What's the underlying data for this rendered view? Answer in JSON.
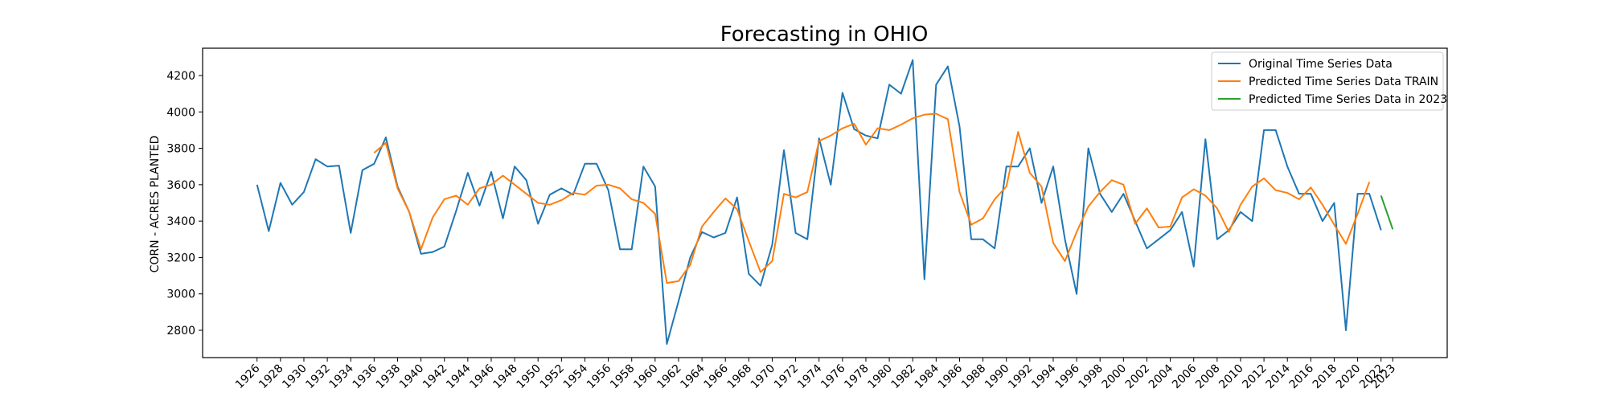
{
  "chart_data": {
    "type": "line",
    "title": "Forecasting in OHIO",
    "xlabel": "",
    "ylabel": "CORN - ACRES PLANTED",
    "xlim": [
      1921.35,
      2027.65
    ],
    "ylim": [
      2650,
      4350
    ],
    "yticks": [
      2800,
      3000,
      3200,
      3400,
      3600,
      3800,
      4000,
      4200
    ],
    "xticks": [
      1926,
      1928,
      1930,
      1932,
      1934,
      1936,
      1938,
      1940,
      1942,
      1944,
      1946,
      1948,
      1950,
      1952,
      1954,
      1956,
      1958,
      1960,
      1962,
      1964,
      1966,
      1968,
      1970,
      1972,
      1974,
      1976,
      1978,
      1980,
      1982,
      1984,
      1986,
      1988,
      1990,
      1992,
      1994,
      1996,
      1998,
      2000,
      2002,
      2004,
      2006,
      2008,
      2010,
      2012,
      2014,
      2016,
      2018,
      2020,
      2022,
      2023
    ],
    "grid": false,
    "legend_position": "upper right",
    "series": [
      {
        "name": "Original Time Series Data",
        "color": "#1f77b4",
        "x": [
          1926,
          1927,
          1928,
          1929,
          1930,
          1931,
          1932,
          1933,
          1934,
          1935,
          1936,
          1937,
          1938,
          1939,
          1940,
          1941,
          1942,
          1943,
          1944,
          1945,
          1946,
          1947,
          1948,
          1949,
          1950,
          1951,
          1952,
          1953,
          1954,
          1955,
          1956,
          1957,
          1958,
          1959,
          1960,
          1961,
          1962,
          1963,
          1964,
          1965,
          1966,
          1967,
          1968,
          1969,
          1970,
          1971,
          1972,
          1973,
          1974,
          1975,
          1976,
          1977,
          1978,
          1979,
          1980,
          1981,
          1982,
          1983,
          1984,
          1985,
          1986,
          1987,
          1988,
          1989,
          1990,
          1991,
          1992,
          1993,
          1994,
          1995,
          1996,
          1997,
          1998,
          1999,
          2000,
          2001,
          2002,
          2003,
          2004,
          2005,
          2006,
          2007,
          2008,
          2009,
          2010,
          2011,
          2012,
          2013,
          2014,
          2015,
          2016,
          2017,
          2018,
          2019,
          2020,
          2021,
          2022
        ],
        "values": [
          3600,
          3345,
          3610,
          3490,
          3560,
          3740,
          3700,
          3705,
          3335,
          3680,
          3715,
          3860,
          3590,
          3450,
          3220,
          3230,
          3260,
          3455,
          3665,
          3485,
          3670,
          3415,
          3700,
          3625,
          3385,
          3545,
          3580,
          3545,
          3715,
          3715,
          3570,
          3245,
          3245,
          3700,
          3590,
          2725,
          2960,
          3200,
          3340,
          3310,
          3335,
          3530,
          3110,
          3045,
          3270,
          3790,
          3335,
          3300,
          3855,
          3600,
          4105,
          3905,
          3870,
          3855,
          4150,
          4100,
          4285,
          3080,
          4150,
          4250,
          3920,
          3300,
          3300,
          3250,
          3700,
          3700,
          3800,
          3500,
          3700,
          3300,
          3000,
          3800,
          3550,
          3450,
          3550,
          3400,
          3250,
          3300,
          3350,
          3450,
          3150,
          3850,
          3300,
          3350,
          3450,
          3400,
          3900,
          3900,
          3700,
          3550,
          3550,
          3400,
          3500,
          2800,
          3550,
          3550,
          3350
        ]
      },
      {
        "name": "Predicted Time Series Data TRAIN",
        "color": "#ff7f0e",
        "x": [
          1936,
          1937,
          1938,
          1939,
          1940,
          1941,
          1942,
          1943,
          1944,
          1945,
          1946,
          1947,
          1948,
          1949,
          1950,
          1951,
          1952,
          1953,
          1954,
          1955,
          1956,
          1957,
          1958,
          1959,
          1960,
          1961,
          1962,
          1963,
          1964,
          1965,
          1966,
          1967,
          1968,
          1969,
          1970,
          1971,
          1972,
          1973,
          1974,
          1975,
          1976,
          1977,
          1978,
          1979,
          1980,
          1981,
          1982,
          1983,
          1984,
          1985,
          1986,
          1987,
          1988,
          1989,
          1990,
          1991,
          1992,
          1993,
          1994,
          1995,
          1996,
          1997,
          1998,
          1999,
          2000,
          2001,
          2002,
          2003,
          2004,
          2005,
          2006,
          2007,
          2008,
          2009,
          2010,
          2011,
          2012,
          2013,
          2014,
          2015,
          2016,
          2017,
          2018,
          2019,
          2020,
          2021
        ],
        "values": [
          3775,
          3830,
          3580,
          3450,
          3245,
          3420,
          3520,
          3540,
          3490,
          3580,
          3600,
          3650,
          3600,
          3550,
          3500,
          3490,
          3515,
          3555,
          3545,
          3595,
          3600,
          3580,
          3520,
          3500,
          3440,
          3060,
          3070,
          3160,
          3370,
          3450,
          3525,
          3465,
          3290,
          3120,
          3180,
          3550,
          3530,
          3560,
          3840,
          3870,
          3910,
          3935,
          3820,
          3910,
          3900,
          3930,
          3965,
          3985,
          3990,
          3960,
          3560,
          3380,
          3415,
          3520,
          3590,
          3890,
          3665,
          3590,
          3280,
          3180,
          3340,
          3480,
          3560,
          3625,
          3600,
          3385,
          3470,
          3365,
          3370,
          3530,
          3575,
          3540,
          3470,
          3340,
          3490,
          3590,
          3635,
          3570,
          3555,
          3520,
          3585,
          3490,
          3380,
          3275,
          3440,
          3615
        ]
      },
      {
        "name": "Predicted Time Series Data in 2023",
        "color": "#2ca02c",
        "x": [
          2022,
          2023
        ],
        "values": [
          3540,
          3355
        ]
      }
    ]
  }
}
